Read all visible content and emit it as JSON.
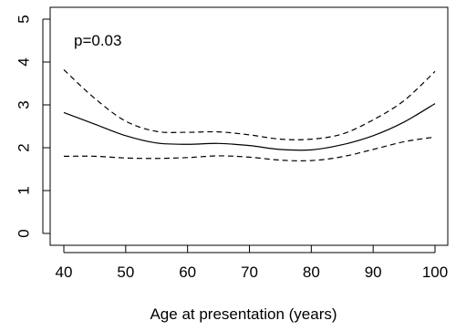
{
  "chart_data": {
    "type": "line",
    "title": "",
    "xlabel": "Age at presentation (years)",
    "ylabel": "",
    "xlim": [
      40,
      100
    ],
    "ylim": [
      0,
      5
    ],
    "x_ticks": [
      40,
      50,
      60,
      70,
      80,
      90,
      100
    ],
    "y_ticks": [
      0,
      1,
      2,
      3,
      4,
      5
    ],
    "grid": false,
    "legend": "none",
    "annotation": "p=0.03",
    "series": [
      {
        "style": "solid",
        "x": [
          40,
          45,
          50,
          55,
          60,
          65,
          70,
          75,
          80,
          85,
          90,
          95,
          100
        ],
        "y": [
          2.82,
          2.55,
          2.28,
          2.11,
          2.08,
          2.1,
          2.05,
          1.96,
          1.95,
          2.07,
          2.28,
          2.6,
          3.03
        ]
      },
      {
        "style": "dashed",
        "x": [
          40,
          45,
          50,
          55,
          60,
          65,
          70,
          75,
          80,
          85,
          90,
          95,
          100
        ],
        "y": [
          3.82,
          3.15,
          2.62,
          2.38,
          2.36,
          2.37,
          2.3,
          2.2,
          2.2,
          2.32,
          2.65,
          3.1,
          3.78
        ]
      },
      {
        "style": "dashed",
        "x": [
          40,
          45,
          50,
          55,
          60,
          65,
          70,
          75,
          80,
          85,
          90,
          95,
          100
        ],
        "y": [
          1.8,
          1.8,
          1.76,
          1.75,
          1.77,
          1.81,
          1.78,
          1.71,
          1.7,
          1.79,
          1.96,
          2.14,
          2.25
        ]
      }
    ],
    "colors": {
      "line": "#000000",
      "axis": "#000000"
    }
  }
}
